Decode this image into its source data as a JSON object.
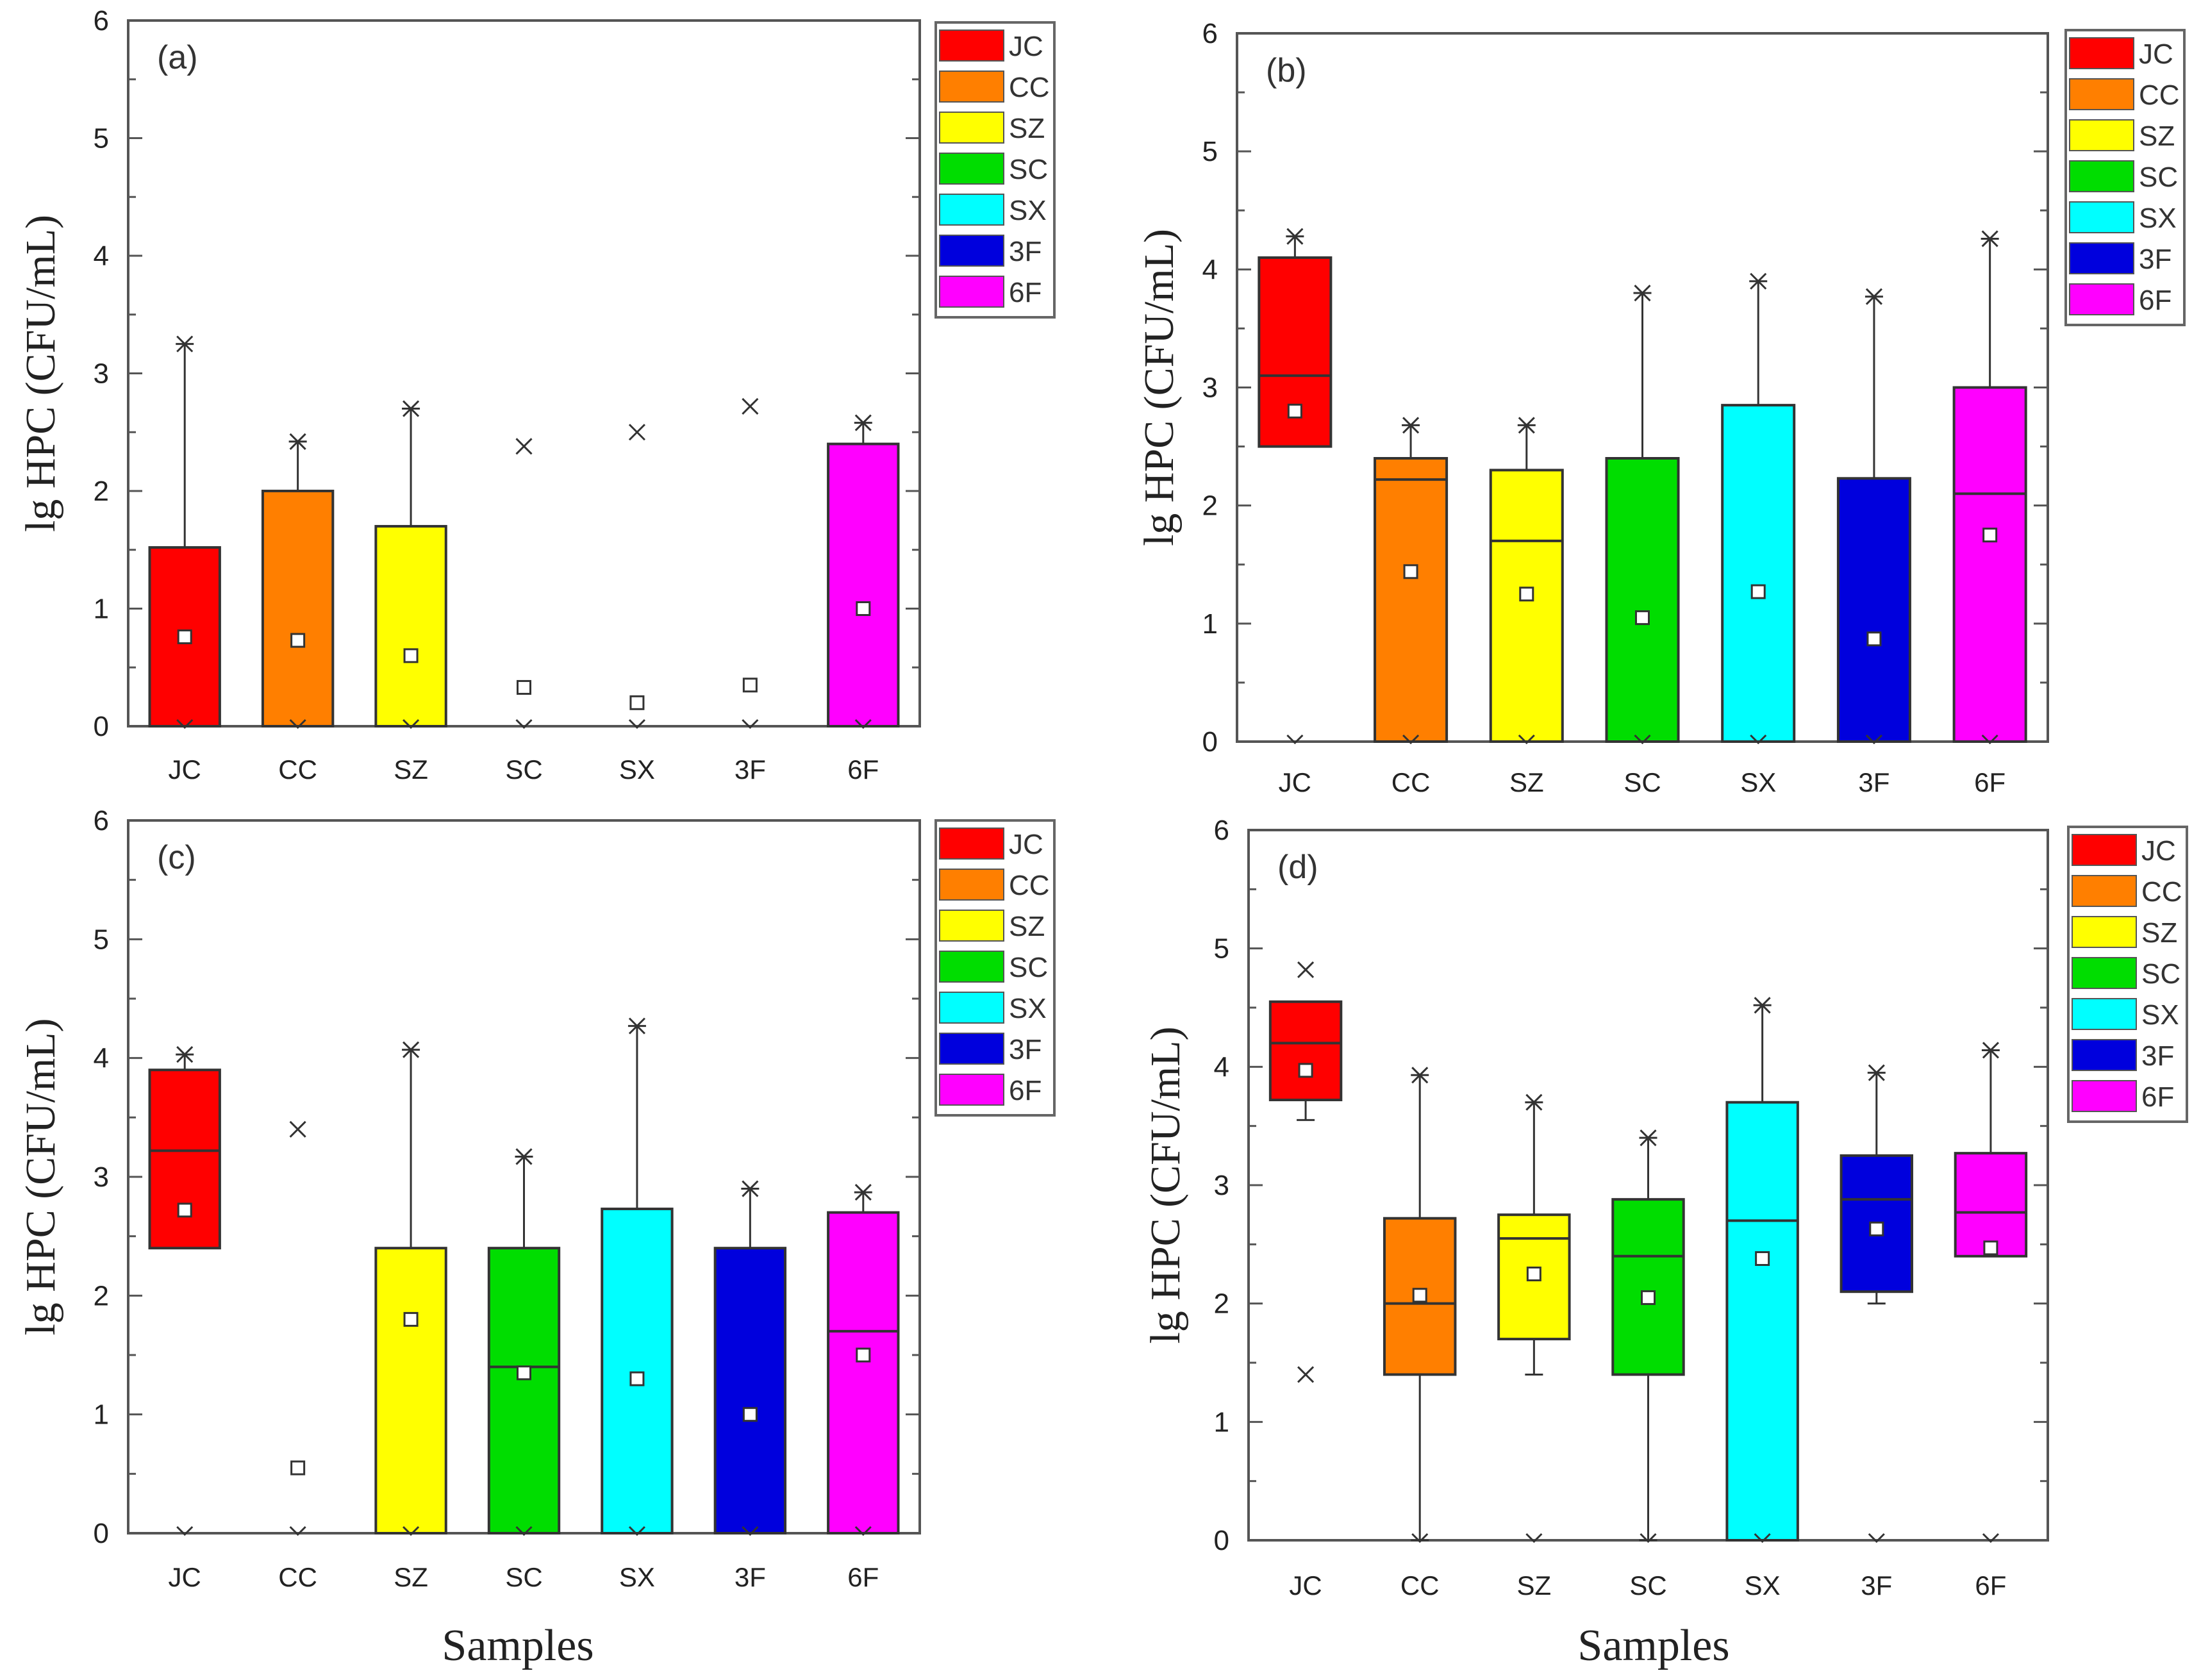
{
  "chart_data": [
    {
      "type": "box",
      "panel": "(a)",
      "ylabel": "lg HPC (CFU/mL)",
      "xlabel": "",
      "ylim": [
        0,
        6
      ],
      "yticks": [
        "0",
        "1",
        "2",
        "3",
        "4",
        "5",
        "6"
      ],
      "categories": [
        "JC",
        "CC",
        "SZ",
        "SC",
        "SX",
        "3F",
        "6F"
      ],
      "colors": [
        "#ff0000",
        "#ff7f00",
        "#ffff00",
        "#00dd00",
        "#00ffff",
        "#0000dd",
        "#ff00ff"
      ],
      "boxes": [
        {
          "q1": 0,
          "median": 0,
          "q3": 1.52,
          "whisker_low": 0,
          "whisker_high": 3.25,
          "mean": 0.76,
          "max": 3.25,
          "min": 0
        },
        {
          "q1": 0,
          "median": 0,
          "q3": 2.0,
          "whisker_low": 0,
          "whisker_high": 2.42,
          "mean": 0.73,
          "max": 2.42,
          "min": 0
        },
        {
          "q1": 0,
          "median": 0,
          "q3": 1.7,
          "whisker_low": 0,
          "whisker_high": 2.7,
          "mean": 0.6,
          "max": 2.7,
          "min": 0
        },
        {
          "q1": 0,
          "median": 0,
          "q3": 0,
          "whisker_low": 0,
          "whisker_high": 0,
          "mean": 0.33,
          "max": 2.38,
          "min": 0
        },
        {
          "q1": 0,
          "median": 0,
          "q3": 0,
          "whisker_low": 0,
          "whisker_high": 0,
          "mean": 0.2,
          "max": 2.5,
          "min": 0
        },
        {
          "q1": 0,
          "median": 0,
          "q3": 0,
          "whisker_low": 0,
          "whisker_high": 0,
          "mean": 0.35,
          "max": 2.72,
          "min": 0
        },
        {
          "q1": 0,
          "median": 0,
          "q3": 2.4,
          "whisker_low": 0,
          "whisker_high": 2.58,
          "mean": 1.0,
          "max": 2.58,
          "min": 0
        }
      ]
    },
    {
      "type": "box",
      "panel": "(b)",
      "ylabel": "lg HPC (CFU/mL)",
      "xlabel": "",
      "ylim": [
        0,
        6
      ],
      "yticks": [
        "0",
        "1",
        "2",
        "3",
        "4",
        "5",
        "6"
      ],
      "categories": [
        "JC",
        "CC",
        "SZ",
        "SC",
        "SX",
        "3F",
        "6F"
      ],
      "colors": [
        "#ff0000",
        "#ff7f00",
        "#ffff00",
        "#00dd00",
        "#00ffff",
        "#0000dd",
        "#ff00ff"
      ],
      "boxes": [
        {
          "q1": 2.5,
          "median": 3.1,
          "q3": 4.1,
          "whisker_low": 2.5,
          "whisker_high": 4.28,
          "mean": 2.8,
          "max": 4.28,
          "min": 0
        },
        {
          "q1": 0,
          "median": 2.22,
          "q3": 2.4,
          "whisker_low": 0,
          "whisker_high": 2.68,
          "mean": 1.44,
          "max": 2.68,
          "min": 0
        },
        {
          "q1": 0,
          "median": 1.7,
          "q3": 2.3,
          "whisker_low": 0,
          "whisker_high": 2.68,
          "mean": 1.25,
          "max": 2.68,
          "min": 0
        },
        {
          "q1": 0,
          "median": 0,
          "q3": 2.4,
          "whisker_low": 0,
          "whisker_high": 3.8,
          "mean": 1.05,
          "max": 3.8,
          "min": 0
        },
        {
          "q1": 0,
          "median": 0,
          "q3": 2.85,
          "whisker_low": 0,
          "whisker_high": 3.9,
          "mean": 1.27,
          "max": 3.9,
          "min": 0
        },
        {
          "q1": 0,
          "median": 0,
          "q3": 2.23,
          "whisker_low": 0,
          "whisker_high": 3.77,
          "mean": 0.87,
          "max": 3.77,
          "min": 0
        },
        {
          "q1": 0,
          "median": 2.1,
          "q3": 3.0,
          "whisker_low": 0,
          "whisker_high": 4.26,
          "mean": 1.75,
          "max": 4.26,
          "min": 0
        }
      ]
    },
    {
      "type": "box",
      "panel": "(c)",
      "ylabel": "lg HPC (CFU/mL)",
      "xlabel": "Samples",
      "ylim": [
        0,
        6
      ],
      "yticks": [
        "0",
        "1",
        "2",
        "3",
        "4",
        "5",
        "6"
      ],
      "categories": [
        "JC",
        "CC",
        "SZ",
        "SC",
        "SX",
        "3F",
        "6F"
      ],
      "colors": [
        "#ff0000",
        "#ff7f00",
        "#ffff00",
        "#00dd00",
        "#00ffff",
        "#0000dd",
        "#ff00ff"
      ],
      "boxes": [
        {
          "q1": 2.4,
          "median": 3.22,
          "q3": 3.9,
          "whisker_low": 2.4,
          "whisker_high": 4.03,
          "mean": 2.72,
          "max": 4.03,
          "min": 0
        },
        {
          "q1": 0,
          "median": 0,
          "q3": 0,
          "whisker_low": 0,
          "whisker_high": 0,
          "mean": 0.55,
          "max": 3.4,
          "min": 0
        },
        {
          "q1": 0,
          "median": 0,
          "q3": 2.4,
          "whisker_low": 0,
          "whisker_high": 4.07,
          "mean": 1.8,
          "max": 4.07,
          "min": 0
        },
        {
          "q1": 0,
          "median": 1.4,
          "q3": 2.4,
          "whisker_low": 0,
          "whisker_high": 3.17,
          "mean": 1.35,
          "max": 3.17,
          "min": 0
        },
        {
          "q1": 0,
          "median": 0,
          "q3": 2.73,
          "whisker_low": 0,
          "whisker_high": 4.27,
          "mean": 1.3,
          "max": 4.27,
          "min": 0
        },
        {
          "q1": 0,
          "median": 0,
          "q3": 2.4,
          "whisker_low": 0,
          "whisker_high": 2.9,
          "mean": 1.0,
          "max": 2.9,
          "min": 0
        },
        {
          "q1": 0,
          "median": 1.7,
          "q3": 2.7,
          "whisker_low": 0,
          "whisker_high": 2.87,
          "mean": 1.5,
          "max": 2.87,
          "min": 0
        }
      ]
    },
    {
      "type": "box",
      "panel": "(d)",
      "ylabel": "lg HPC (CFU/mL)",
      "xlabel": "Samples",
      "ylim": [
        0,
        6
      ],
      "yticks": [
        "0",
        "1",
        "2",
        "3",
        "4",
        "5",
        "6"
      ],
      "categories": [
        "JC",
        "CC",
        "SZ",
        "SC",
        "SX",
        "3F",
        "6F"
      ],
      "colors": [
        "#ff0000",
        "#ff7f00",
        "#ffff00",
        "#00dd00",
        "#00ffff",
        "#0000dd",
        "#ff00ff"
      ],
      "boxes": [
        {
          "q1": 3.72,
          "median": 4.2,
          "q3": 4.55,
          "whisker_low": 3.55,
          "whisker_high": 4.55,
          "mean": 3.97,
          "max": 4.82,
          "min": 1.4
        },
        {
          "q1": 1.4,
          "median": 2.0,
          "q3": 2.72,
          "whisker_low": 0,
          "whisker_high": 3.93,
          "mean": 2.07,
          "max": 3.93,
          "min": 0
        },
        {
          "q1": 1.7,
          "median": 2.55,
          "q3": 2.75,
          "whisker_low": 1.4,
          "whisker_high": 3.7,
          "mean": 2.25,
          "max": 3.7,
          "min": 0
        },
        {
          "q1": 1.4,
          "median": 2.4,
          "q3": 2.88,
          "whisker_low": 0,
          "whisker_high": 3.4,
          "mean": 2.05,
          "max": 3.4,
          "min": 0
        },
        {
          "q1": 0,
          "median": 2.7,
          "q3": 3.7,
          "whisker_low": 0,
          "whisker_high": 4.52,
          "mean": 2.38,
          "max": 4.52,
          "min": 0
        },
        {
          "q1": 2.1,
          "median": 2.88,
          "q3": 3.25,
          "whisker_low": 2.0,
          "whisker_high": 3.95,
          "mean": 2.63,
          "max": 3.95,
          "min": 0
        },
        {
          "q1": 2.4,
          "median": 2.77,
          "q3": 3.27,
          "whisker_low": 2.4,
          "whisker_high": 4.14,
          "mean": 2.47,
          "max": 4.14,
          "min": 0
        }
      ]
    }
  ],
  "legend": {
    "entries": [
      "JC",
      "CC",
      "SZ",
      "SC",
      "SX",
      "3F",
      "6F"
    ]
  }
}
